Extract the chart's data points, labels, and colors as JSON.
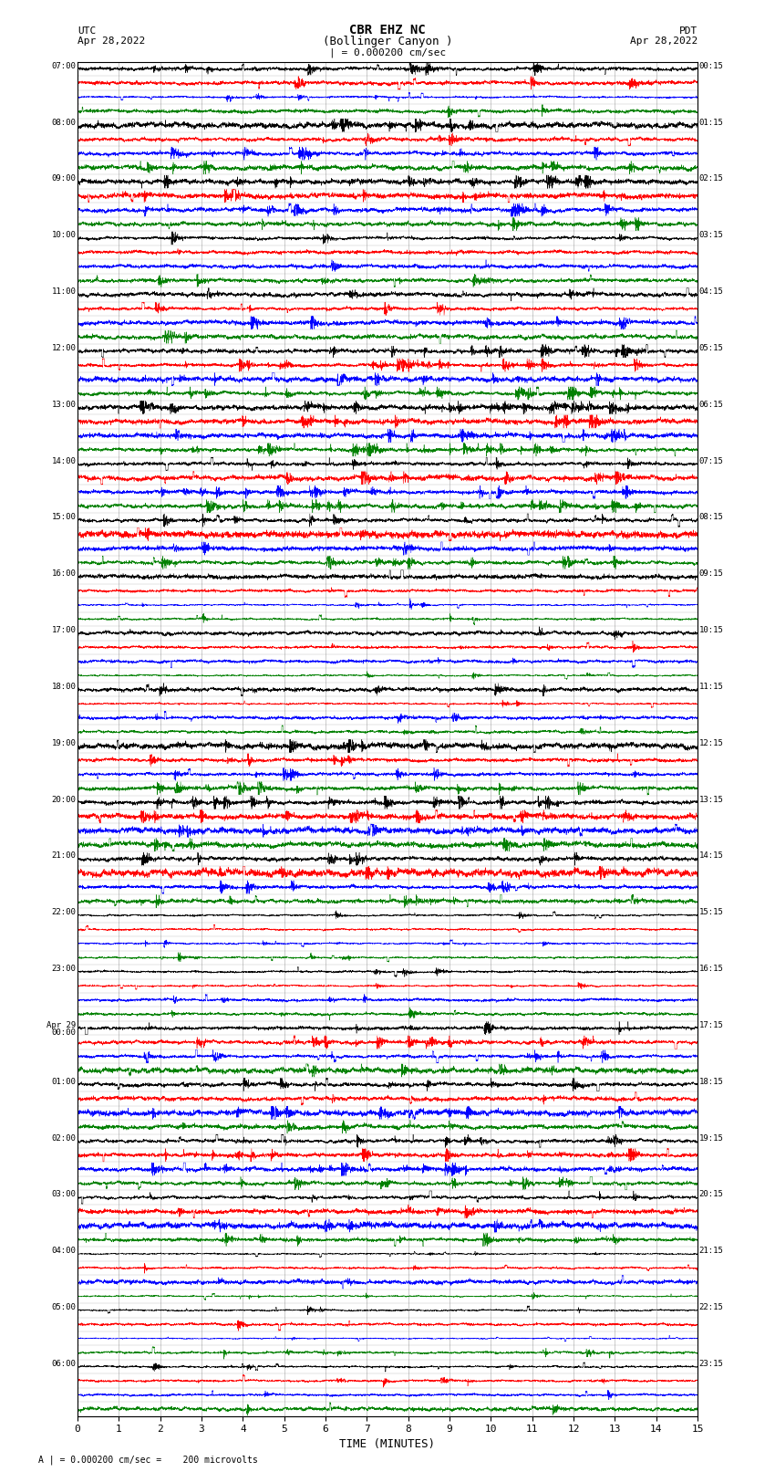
{
  "title_line1": "CBR EHZ NC",
  "title_line2": "(Bollinger Canyon )",
  "scale_label": "| = 0.000200 cm/sec",
  "left_header_line1": "UTC",
  "left_header_line2": "Apr 28,2022",
  "right_header_line1": "PDT",
  "right_header_line2": "Apr 28,2022",
  "xlabel": "TIME (MINUTES)",
  "footnote": "A | = 0.000200 cm/sec =    200 microvolts",
  "num_rows": 24,
  "traces_per_row": 4,
  "colors": [
    "black",
    "red",
    "blue",
    "green"
  ],
  "left_times": [
    "07:00",
    "08:00",
    "09:00",
    "10:00",
    "11:00",
    "12:00",
    "13:00",
    "14:00",
    "15:00",
    "16:00",
    "17:00",
    "18:00",
    "19:00",
    "20:00",
    "21:00",
    "22:00",
    "23:00",
    "Apr 29\n00:00",
    "01:00",
    "02:00",
    "03:00",
    "04:00",
    "05:00",
    "06:00"
  ],
  "right_times": [
    "00:15",
    "01:15",
    "02:15",
    "03:15",
    "04:15",
    "05:15",
    "06:15",
    "07:15",
    "08:15",
    "09:15",
    "10:15",
    "11:15",
    "12:15",
    "13:15",
    "14:15",
    "15:15",
    "16:15",
    "17:15",
    "18:15",
    "19:15",
    "20:15",
    "21:15",
    "22:15",
    "23:15"
  ],
  "fig_width": 8.5,
  "fig_height": 16.13,
  "bg_color": "white",
  "noise_seed": 12345,
  "row_activity": [
    1.2,
    1.5,
    1.8,
    1.0,
    1.3,
    3.5,
    4.0,
    3.0,
    1.8,
    0.8,
    1.0,
    1.0,
    2.0,
    2.5,
    1.5,
    0.7,
    0.6,
    1.8,
    1.5,
    2.5,
    1.8,
    0.9,
    0.7,
    0.8
  ]
}
